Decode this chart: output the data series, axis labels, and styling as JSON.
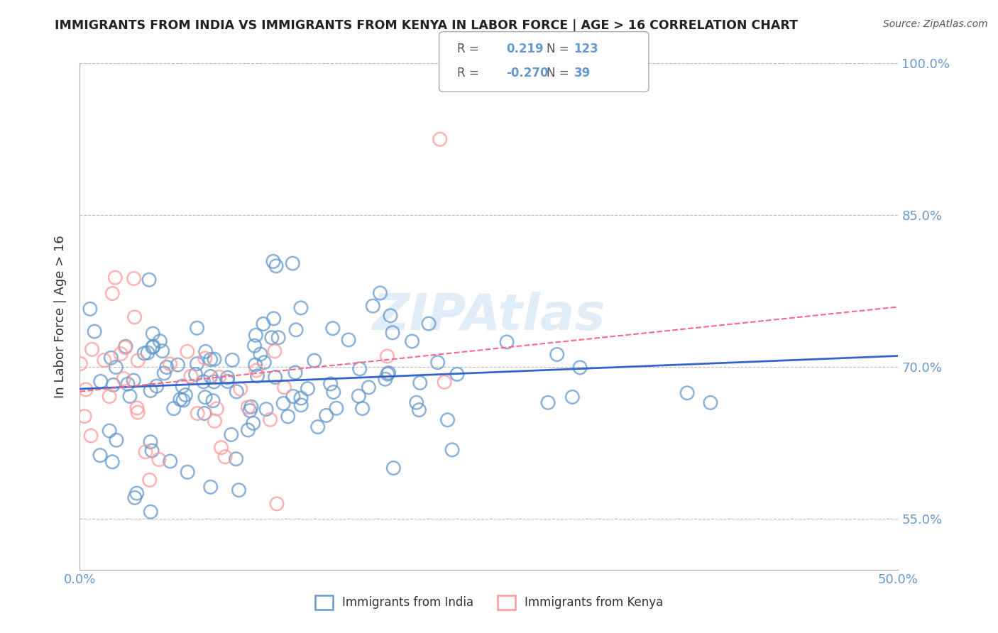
{
  "title": "IMMIGRANTS FROM INDIA VS IMMIGRANTS FROM KENYA IN LABOR FORCE | AGE > 16 CORRELATION CHART",
  "source": "Source: ZipAtlas.com",
  "xlabel": "",
  "ylabel": "In Labor Force | Age > 16",
  "xlim": [
    0.0,
    0.5
  ],
  "ylim": [
    0.5,
    1.0
  ],
  "yticks": [
    0.55,
    0.7,
    0.85,
    1.0
  ],
  "ytick_labels": [
    "55.0%",
    "70.0%",
    "85.0%",
    "100.0%"
  ],
  "xticks": [
    0.0,
    0.05,
    0.1,
    0.15,
    0.2,
    0.25,
    0.3,
    0.35,
    0.4,
    0.45,
    0.5
  ],
  "xtick_labels": [
    "0.0%",
    "",
    "",
    "",
    "",
    "",
    "",
    "",
    "",
    "",
    "50.0%"
  ],
  "india_R": 0.219,
  "india_N": 123,
  "kenya_R": -0.27,
  "kenya_N": 39,
  "india_color": "#6699CC",
  "kenya_color": "#FF9999",
  "india_line_color": "#3366CC",
  "kenya_line_color": "#FF6688",
  "title_color": "#222222",
  "axis_color": "#6699CC",
  "watermark": "ZIPAtlas",
  "background_color": "#FFFFFF",
  "india_seed": 42,
  "kenya_seed": 7
}
